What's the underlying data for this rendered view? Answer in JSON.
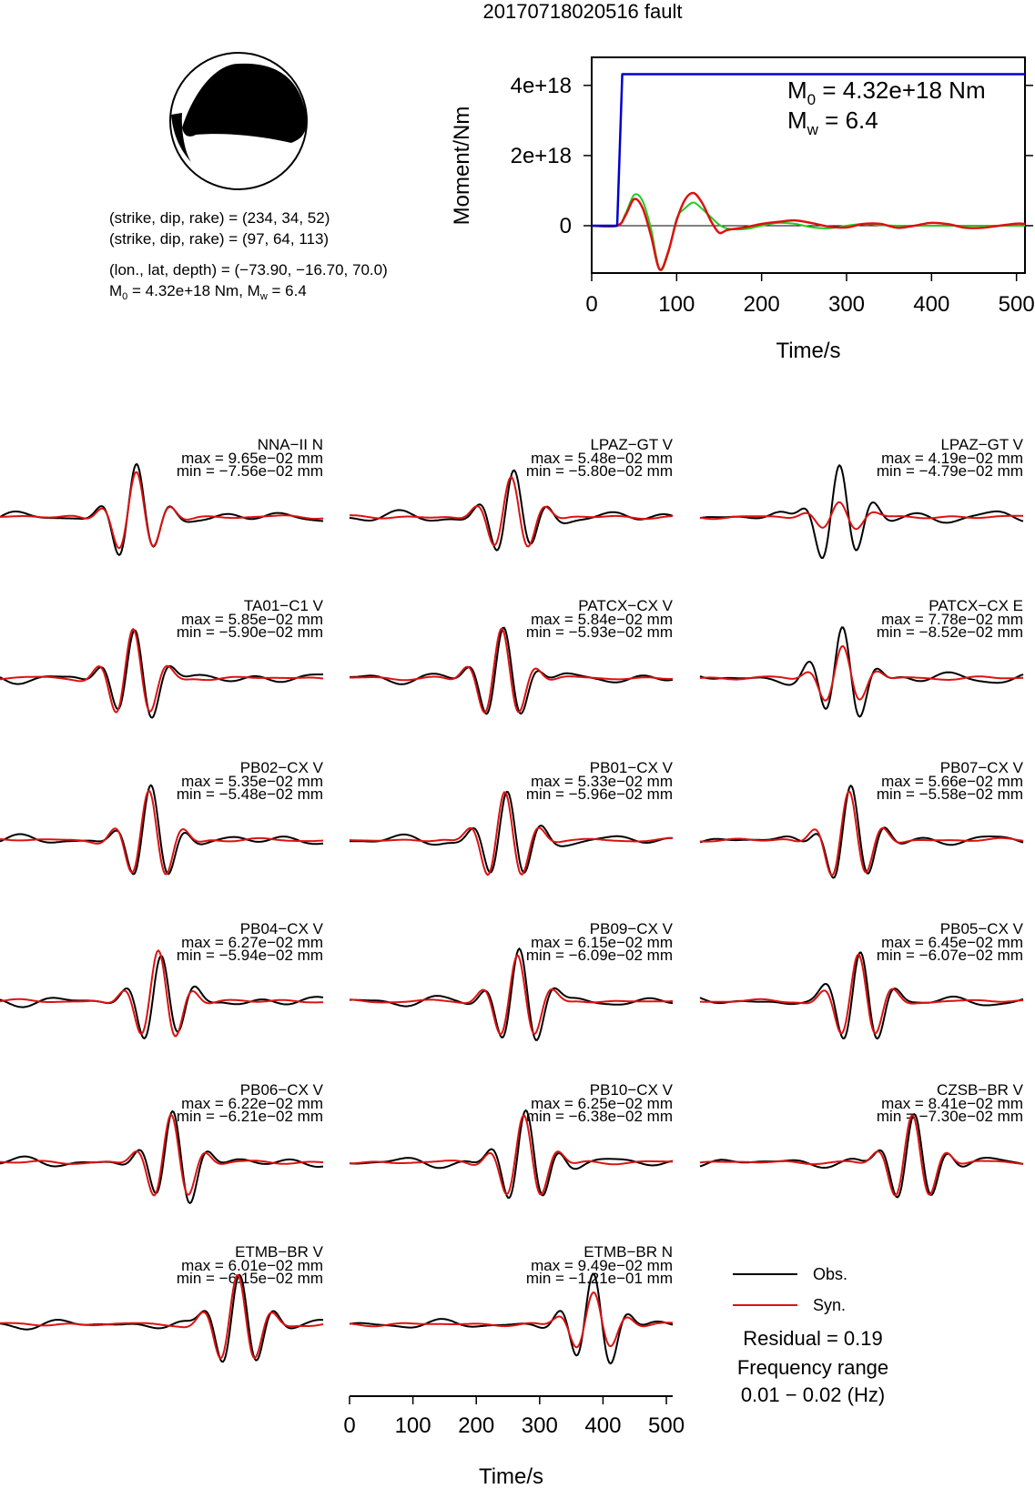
{
  "title": "20170718020516 fault",
  "mechanism": {
    "nodal_plane_1": "(strike, dip, rake) = (234, 34, 52)",
    "nodal_plane_2": "(strike, dip, rake) = (97, 64, 113)",
    "location": "(lon., lat, depth) = (−73.90, −16.70, 70.0)",
    "moment_text": "M",
    "moment_sub": "0",
    "moment_rest": " = 4.32e+18 Nm, M",
    "mw_sub": "w",
    "mw_rest": " = 6.4"
  },
  "stf_chart": {
    "type": "line",
    "ylabel": "Moment/Nm",
    "xlabel": "Time/s",
    "x_ticks": [
      "0",
      "100",
      "200",
      "300",
      "400",
      "500"
    ],
    "y_ticks": [
      "0",
      "2e+18",
      "4e+18"
    ],
    "xlim": [
      0,
      510
    ],
    "ylim": [
      -1.35e+18,
      4.8e+18
    ],
    "m0_label": "M",
    "m0_sub": "0",
    "m0_value": " = 4.32e+18 Nm",
    "mw_label": "M",
    "mw_sub": "w",
    "mw_value": " = 6.4"
  },
  "chart_data": {
    "type": "line",
    "title": "20170718020516 fault",
    "moment_curve": {
      "x": [
        0,
        30,
        36,
        510
      ],
      "y": [
        0,
        0,
        4.32e+18,
        4.32e+18
      ],
      "color": "#0000cc"
    },
    "moment_rate_green": {
      "x": [
        0,
        30,
        40,
        50,
        60,
        70,
        80,
        90,
        100,
        110,
        120,
        130,
        140,
        150,
        160,
        180,
        200,
        220,
        240,
        260,
        280,
        300,
        320,
        340,
        360,
        380,
        400,
        420,
        440,
        460,
        480,
        500,
        510
      ],
      "y": [
        0,
        0,
        3.5e+17,
        8.8e+17,
        7e+17,
        -1e+17,
        -1.25e+18,
        -8e+17,
        2e+17,
        5e+17,
        6.6e+17,
        4.8e+17,
        2.5e+17,
        3e+16,
        -8e+16,
        -1e+17,
        0,
        8e+16,
        5e+16,
        -5e+16,
        -7e+16,
        0,
        5e+16,
        1.5e+16,
        0,
        0,
        0,
        0,
        0,
        0,
        0,
        0,
        0
      ],
      "color": "#22cc22"
    },
    "moment_rate_red": {
      "x": [
        0,
        30,
        40,
        50,
        60,
        70,
        80,
        90,
        100,
        110,
        120,
        130,
        140,
        150,
        160,
        180,
        200,
        220,
        240,
        260,
        280,
        300,
        320,
        340,
        360,
        380,
        400,
        420,
        440,
        460,
        480,
        500,
        510
      ],
      "y": [
        0,
        0,
        3e+17,
        7.6e+17,
        5e+17,
        -3e+17,
        -1.25e+18,
        -7.5e+17,
        1.5e+17,
        7.5e+17,
        9.3e+17,
        6.5e+17,
        1.5e+17,
        -2e+17,
        -1.2e+17,
        -5e+16,
        5e+16,
        1.1e+17,
        1.5e+17,
        7e+16,
        -3e+16,
        -5e+16,
        5e+16,
        5e+16,
        -6e+16,
        0,
        8e+16,
        4e+16,
        -6e+16,
        -6e+16,
        0,
        6e+16,
        5e+16
      ],
      "color": "#dd1111"
    },
    "waveform_time_axis": {
      "xlabel": "Time/s",
      "x_ticks": [
        "0",
        "100",
        "200",
        "300",
        "400",
        "500"
      ],
      "xlim": [
        0,
        510
      ]
    },
    "stations": [
      {
        "name": "NNA−II N",
        "max": "max = 9.65e−02 mm",
        "min": "min = −7.56e−02 mm",
        "peak_t": 215,
        "obs_amp": 0.96,
        "syn_amp": 0.9,
        "obs_shift": 0,
        "ratio": 0.95,
        "extra_noise": 0.35
      },
      {
        "name": "LPAZ−GT V",
        "max": "max = 5.48e−02 mm",
        "min": "min = −5.80e−02 mm",
        "peak_t": 255,
        "obs_amp": 0.9,
        "syn_amp": 0.95,
        "obs_shift": 4,
        "ratio": 0.85,
        "extra_noise": 0.45
      },
      {
        "name": "LPAZ−GT V",
        "max": "max = 4.19e−02 mm",
        "min": "min = −4.79e−02 mm",
        "peak_t": 220,
        "obs_amp": 1.0,
        "syn_amp": 0.45,
        "obs_shift": 0,
        "ratio": 0.7,
        "extra_noise": 0.55
      },
      {
        "name": "TA01−C1 V",
        "max": "max = 5.85e−02 mm",
        "min": "min = −5.90e−02 mm",
        "peak_t": 210,
        "obs_amp": 0.95,
        "syn_amp": 1.0,
        "obs_shift": 3,
        "ratio": 0.95,
        "extra_noise": 0.35
      },
      {
        "name": "PATCX−CX V",
        "max": "max = 5.84e−02 mm",
        "min": "min = −5.93e−02 mm",
        "peak_t": 240,
        "obs_amp": 0.95,
        "syn_amp": 1.0,
        "obs_shift": 3,
        "ratio": 0.95,
        "extra_noise": 0.35
      },
      {
        "name": "PATCX−CX E",
        "max": "max = 7.78e−02 mm",
        "min": "min = −8.52e−02 mm",
        "peak_t": 225,
        "obs_amp": 1.0,
        "syn_amp": 0.75,
        "obs_shift": 0,
        "ratio": 0.8,
        "extra_noise": 0.5
      },
      {
        "name": "PB02−CX V",
        "max": "max = 5.35e−02 mm",
        "min": "min = −5.48e−02 mm",
        "peak_t": 235,
        "obs_amp": 0.95,
        "syn_amp": 1.0,
        "obs_shift": 3,
        "ratio": 0.95,
        "extra_noise": 0.3
      },
      {
        "name": "PB01−CX V",
        "max": "max = 5.33e−02 mm",
        "min": "min = −5.96e−02 mm",
        "peak_t": 245,
        "obs_amp": 0.95,
        "syn_amp": 1.0,
        "obs_shift": 4,
        "ratio": 0.95,
        "extra_noise": 0.3
      },
      {
        "name": "PB07−CX V",
        "max": "max = 5.66e−02 mm",
        "min": "min = −5.58e−02 mm",
        "peak_t": 235,
        "obs_amp": 1.0,
        "syn_amp": 1.0,
        "obs_shift": 3,
        "ratio": 0.95,
        "extra_noise": 0.3
      },
      {
        "name": "PB04−CX V",
        "max": "max = 6.27e−02 mm",
        "min": "min = −5.94e−02 mm",
        "peak_t": 250,
        "obs_amp": 0.95,
        "syn_amp": 1.0,
        "obs_shift": 4,
        "ratio": 0.95,
        "extra_noise": 0.3
      },
      {
        "name": "PB09−CX V",
        "max": "max = 6.15e−02 mm",
        "min": "min = −6.09e−02 mm",
        "peak_t": 265,
        "obs_amp": 1.0,
        "syn_amp": 0.95,
        "obs_shift": 3,
        "ratio": 0.95,
        "extra_noise": 0.3
      },
      {
        "name": "PB05−CX V",
        "max": "max = 6.45e−02 mm",
        "min": "min = −6.07e−02 mm",
        "peak_t": 250,
        "obs_amp": 1.0,
        "syn_amp": 0.95,
        "obs_shift": 3,
        "ratio": 0.95,
        "extra_noise": 0.3
      },
      {
        "name": "PB06−CX V",
        "max": "max = 6.22e−02 mm",
        "min": "min = −6.21e−02 mm",
        "peak_t": 270,
        "obs_amp": 1.0,
        "syn_amp": 0.95,
        "obs_shift": 3,
        "ratio": 0.95,
        "extra_noise": 0.3
      },
      {
        "name": "PB10−CX V",
        "max": "max = 6.25e−02 mm",
        "min": "min = −6.38e−02 mm",
        "peak_t": 275,
        "obs_amp": 1.0,
        "syn_amp": 0.95,
        "obs_shift": 3,
        "ratio": 0.95,
        "extra_noise": 0.3
      },
      {
        "name": "CZSB−BR V",
        "max": "max = 8.41e−02 mm",
        "min": "min = −7.30e−02 mm",
        "peak_t": 335,
        "obs_amp": 0.95,
        "syn_amp": 0.95,
        "obs_shift": 3,
        "ratio": 0.95,
        "extra_noise": 0.25
      },
      {
        "name": "ETMB−BR V",
        "max": "max = 6.01e−02 mm",
        "min": "min = −6.15e−02 mm",
        "peak_t": 375,
        "obs_amp": 1.0,
        "syn_amp": 1.0,
        "obs_shift": 3,
        "ratio": 0.95,
        "extra_noise": 0.25
      },
      {
        "name": "ETMB−BR N",
        "max": "max = 9.49e−02 mm",
        "min": "min = −1.21e−01 mm",
        "peak_t": 385,
        "obs_amp": 1.0,
        "syn_amp": 0.7,
        "obs_shift": 0,
        "ratio": 0.9,
        "extra_noise": 0.2
      }
    ]
  },
  "legend": {
    "obs_label": "Obs.",
    "syn_label": "Syn.",
    "obs_color": "#000000",
    "syn_color": "#dd1111"
  },
  "residual": "Residual = 0.19",
  "frequency_label": "Frequency range",
  "frequency_range": "0.01 − 0.02 (Hz)"
}
